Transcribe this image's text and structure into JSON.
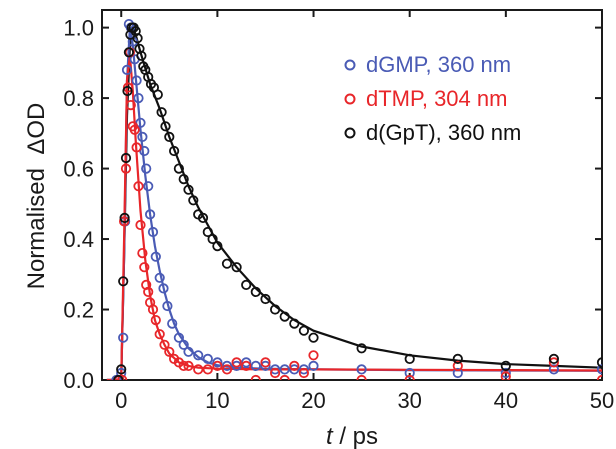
{
  "chart_data": {
    "type": "scatter",
    "xlabel_var": "t",
    "xlabel_unit": " / ps",
    "ylabel_prefix": "Normalised  ",
    "ylabel_delta": "Δ",
    "ylabel_suffix": "OD",
    "xlim": [
      -2,
      50
    ],
    "ylim": [
      0,
      1.05
    ],
    "xticks": [
      0,
      10,
      20,
      30,
      40,
      50
    ],
    "yticks": [
      0.0,
      0.2,
      0.4,
      0.6,
      0.8,
      1.0
    ],
    "xtick_labels": [
      "0",
      "10",
      "20",
      "30",
      "40",
      "50"
    ],
    "ytick_labels": [
      "0.0",
      "0.2",
      "0.4",
      "0.6",
      "0.8",
      "1.0"
    ],
    "legend_position": "top-right",
    "series": [
      {
        "name": "dGMP, 360 nm",
        "color": "#4a5bb5",
        "points": [
          [
            -0.5,
            0.0
          ],
          [
            -0.2,
            0.0
          ],
          [
            0.0,
            0.02
          ],
          [
            0.2,
            0.12
          ],
          [
            0.4,
            0.45
          ],
          [
            0.6,
            0.88
          ],
          [
            0.8,
            1.01
          ],
          [
            1.0,
            1.0
          ],
          [
            1.2,
            0.96
          ],
          [
            1.4,
            0.91
          ],
          [
            1.6,
            0.85
          ],
          [
            1.8,
            0.8
          ],
          [
            2.0,
            0.73
          ],
          [
            2.2,
            0.69
          ],
          [
            2.4,
            0.65
          ],
          [
            2.6,
            0.6
          ],
          [
            2.8,
            0.55
          ],
          [
            3.0,
            0.47
          ],
          [
            3.3,
            0.42
          ],
          [
            3.6,
            0.35
          ],
          [
            4.0,
            0.29
          ],
          [
            4.4,
            0.26
          ],
          [
            4.8,
            0.21
          ],
          [
            5.3,
            0.16
          ],
          [
            6.0,
            0.12
          ],
          [
            6.5,
            0.1
          ],
          [
            7.0,
            0.08
          ],
          [
            8.0,
            0.07
          ],
          [
            9.0,
            0.06
          ],
          [
            10.0,
            0.05
          ],
          [
            11.0,
            0.04
          ],
          [
            12.0,
            0.04
          ],
          [
            13.0,
            0.05
          ],
          [
            14.0,
            0.04
          ],
          [
            15.0,
            0.04
          ],
          [
            16.0,
            0.03
          ],
          [
            17.0,
            0.03
          ],
          [
            18.0,
            0.03
          ],
          [
            19.0,
            0.03
          ],
          [
            20.0,
            0.04
          ],
          [
            25.0,
            0.03
          ],
          [
            30.0,
            0.02
          ],
          [
            35.0,
            0.02
          ],
          [
            40.0,
            0.02
          ],
          [
            45.0,
            0.03
          ],
          [
            50.0,
            0.03
          ]
        ],
        "fit": [
          [
            -1.5,
            0.0
          ],
          [
            0.0,
            0.0
          ],
          [
            0.3,
            0.35
          ],
          [
            0.6,
            0.85
          ],
          [
            0.9,
            1.0
          ],
          [
            1.2,
            0.95
          ],
          [
            1.5,
            0.86
          ],
          [
            2.0,
            0.71
          ],
          [
            2.5,
            0.58
          ],
          [
            3.0,
            0.47
          ],
          [
            3.5,
            0.38
          ],
          [
            4.0,
            0.31
          ],
          [
            4.5,
            0.25
          ],
          [
            5.0,
            0.2
          ],
          [
            5.5,
            0.16
          ],
          [
            6.0,
            0.13
          ],
          [
            7.0,
            0.09
          ],
          [
            8.0,
            0.065
          ],
          [
            9.0,
            0.05
          ],
          [
            10.0,
            0.042
          ],
          [
            12.0,
            0.035
          ],
          [
            15.0,
            0.032
          ],
          [
            20.0,
            0.03
          ],
          [
            30.0,
            0.028
          ],
          [
            40.0,
            0.027
          ],
          [
            50.0,
            0.026
          ]
        ]
      },
      {
        "name": "dTMP, 304 nm",
        "color": "#e8262a",
        "points": [
          [
            -0.2,
            0.0
          ],
          [
            0.1,
            0.0
          ],
          [
            0.3,
            0.45
          ],
          [
            0.5,
            0.6
          ],
          [
            0.7,
            0.83
          ],
          [
            0.9,
            0.93
          ],
          [
            1.0,
            0.78
          ],
          [
            1.2,
            0.72
          ],
          [
            1.4,
            0.71
          ],
          [
            1.6,
            0.66
          ],
          [
            1.8,
            0.55
          ],
          [
            2.0,
            0.44
          ],
          [
            2.2,
            0.36
          ],
          [
            2.4,
            0.32
          ],
          [
            2.6,
            0.27
          ],
          [
            2.8,
            0.25
          ],
          [
            3.0,
            0.22
          ],
          [
            3.3,
            0.2
          ],
          [
            3.6,
            0.17
          ],
          [
            4.0,
            0.13
          ],
          [
            4.5,
            0.1
          ],
          [
            5.0,
            0.08
          ],
          [
            5.5,
            0.06
          ],
          [
            6.0,
            0.05
          ],
          [
            6.5,
            0.04
          ],
          [
            7.0,
            0.04
          ],
          [
            8.0,
            0.03
          ],
          [
            9.0,
            0.03
          ],
          [
            10.0,
            0.04
          ],
          [
            11.0,
            0.03
          ],
          [
            12.0,
            0.05
          ],
          [
            13.0,
            0.04
          ],
          [
            14.0,
            0.0
          ],
          [
            15.0,
            0.05
          ],
          [
            16.0,
            0.02
          ],
          [
            17.0,
            0.0
          ],
          [
            18.0,
            0.04
          ],
          [
            19.0,
            0.02
          ],
          [
            20.0,
            0.07
          ],
          [
            25.0,
            0.0
          ],
          [
            30.0,
            0.0
          ],
          [
            35.0,
            0.04
          ],
          [
            40.0,
            0.01
          ],
          [
            45.0,
            0.05
          ],
          [
            50.0,
            0.0
          ]
        ],
        "fit": [
          [
            -1.5,
            0.0
          ],
          [
            0.0,
            0.0
          ],
          [
            0.3,
            0.4
          ],
          [
            0.6,
            0.85
          ],
          [
            0.9,
            0.92
          ],
          [
            1.2,
            0.82
          ],
          [
            1.5,
            0.68
          ],
          [
            2.0,
            0.48
          ],
          [
            2.5,
            0.34
          ],
          [
            3.0,
            0.24
          ],
          [
            3.5,
            0.17
          ],
          [
            4.0,
            0.13
          ],
          [
            4.5,
            0.1
          ],
          [
            5.0,
            0.075
          ],
          [
            6.0,
            0.05
          ],
          [
            7.0,
            0.04
          ],
          [
            8.0,
            0.035
          ],
          [
            10.0,
            0.032
          ],
          [
            15.0,
            0.03
          ],
          [
            20.0,
            0.03
          ],
          [
            30.0,
            0.029
          ],
          [
            40.0,
            0.028
          ],
          [
            50.0,
            0.027
          ]
        ]
      },
      {
        "name": "d(GpT), 360 nm",
        "color": "#111111",
        "points": [
          [
            -0.3,
            0.0
          ],
          [
            0.0,
            0.03
          ],
          [
            0.2,
            0.28
          ],
          [
            0.35,
            0.46
          ],
          [
            0.5,
            0.63
          ],
          [
            0.65,
            0.82
          ],
          [
            0.8,
            0.93
          ],
          [
            0.95,
            0.98
          ],
          [
            1.1,
            1.0
          ],
          [
            1.3,
            1.0
          ],
          [
            1.5,
            0.99
          ],
          [
            1.7,
            0.97
          ],
          [
            1.9,
            0.94
          ],
          [
            2.1,
            0.92
          ],
          [
            2.3,
            0.89
          ],
          [
            2.5,
            0.88
          ],
          [
            2.8,
            0.86
          ],
          [
            3.1,
            0.84
          ],
          [
            3.4,
            0.83
          ],
          [
            3.8,
            0.81
          ],
          [
            4.2,
            0.76
          ],
          [
            4.6,
            0.72
          ],
          [
            5.0,
            0.69
          ],
          [
            5.5,
            0.65
          ],
          [
            6.0,
            0.6
          ],
          [
            6.5,
            0.57
          ],
          [
            7.0,
            0.54
          ],
          [
            7.5,
            0.51
          ],
          [
            8.0,
            0.47
          ],
          [
            8.5,
            0.46
          ],
          [
            9.0,
            0.42
          ],
          [
            9.5,
            0.4
          ],
          [
            10.0,
            0.38
          ],
          [
            11.0,
            0.33
          ],
          [
            12.0,
            0.32
          ],
          [
            13.0,
            0.27
          ],
          [
            14.0,
            0.25
          ],
          [
            15.0,
            0.23
          ],
          [
            16.0,
            0.2
          ],
          [
            17.0,
            0.18
          ],
          [
            18.0,
            0.16
          ],
          [
            19.0,
            0.14
          ],
          [
            20.0,
            0.12
          ],
          [
            25.0,
            0.09
          ],
          [
            30.0,
            0.06
          ],
          [
            35.0,
            0.06
          ],
          [
            40.0,
            0.04
          ],
          [
            45.0,
            0.06
          ],
          [
            50.0,
            0.05
          ]
        ],
        "fit": [
          [
            -1.5,
            0.0
          ],
          [
            0.0,
            0.0
          ],
          [
            0.3,
            0.35
          ],
          [
            0.6,
            0.75
          ],
          [
            0.9,
            0.95
          ],
          [
            1.2,
            1.0
          ],
          [
            1.5,
            0.98
          ],
          [
            2.0,
            0.93
          ],
          [
            3.0,
            0.84
          ],
          [
            4.0,
            0.77
          ],
          [
            5.0,
            0.69
          ],
          [
            6.0,
            0.62
          ],
          [
            7.0,
            0.55
          ],
          [
            8.0,
            0.49
          ],
          [
            9.0,
            0.44
          ],
          [
            10.0,
            0.39
          ],
          [
            12.0,
            0.32
          ],
          [
            14.0,
            0.26
          ],
          [
            16.0,
            0.21
          ],
          [
            18.0,
            0.17
          ],
          [
            20.0,
            0.14
          ],
          [
            25.0,
            0.095
          ],
          [
            30.0,
            0.07
          ],
          [
            35.0,
            0.055
          ],
          [
            40.0,
            0.045
          ],
          [
            45.0,
            0.04
          ],
          [
            50.0,
            0.035
          ]
        ]
      }
    ]
  }
}
